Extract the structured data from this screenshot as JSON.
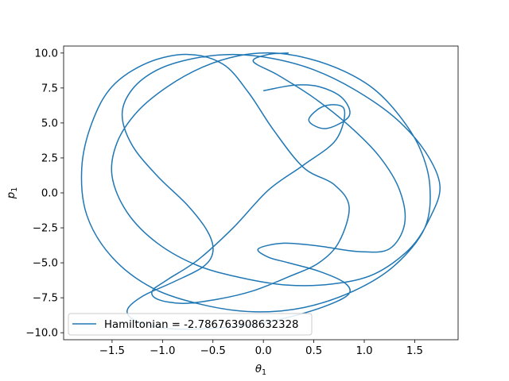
{
  "chart_data": {
    "type": "line",
    "xlabel_symbol": "θ",
    "xlabel_subscript": "1",
    "ylabel_symbol": "p",
    "ylabel_subscript": "1",
    "xlim": [
      -1.98,
      1.93
    ],
    "ylim": [
      -10.5,
      10.5
    ],
    "x_ticks": [
      -1.5,
      -1.0,
      -0.5,
      0.0,
      0.5,
      1.0,
      1.5
    ],
    "x_tick_labels": [
      "−1.5",
      "−1.0",
      "−0.5",
      "0.0",
      "0.5",
      "1.0",
      "1.5"
    ],
    "y_ticks": [
      -10.0,
      -7.5,
      -5.0,
      -2.5,
      0.0,
      2.5,
      5.0,
      7.5,
      10.0
    ],
    "y_tick_labels": [
      "−10.0",
      "−7.5",
      "−5.0",
      "−2.5",
      "0.0",
      "2.5",
      "5.0",
      "7.5",
      "10.0"
    ],
    "grid": false,
    "legend_position": "lower-left",
    "series": [
      {
        "name": "Hamiltonian = -2.786763908632328",
        "color": "#1f77b4",
        "x": [
          0.0,
          0.3,
          0.55,
          0.78,
          0.85,
          0.62,
          0.45,
          0.6,
          0.8,
          0.72,
          0.4,
          0.05,
          -0.3,
          -0.65,
          -0.95,
          -1.1,
          -1.05,
          -0.8,
          -0.45,
          -0.1,
          0.25,
          0.55,
          0.75,
          0.85,
          0.7,
          0.4,
          0.1,
          -0.15,
          -0.4,
          -0.75,
          -1.15,
          -1.5,
          -1.7,
          -1.8,
          -1.75,
          -1.5,
          -1.1,
          -0.6,
          -0.1,
          0.4,
          0.9,
          1.3,
          1.6,
          1.65,
          1.55,
          1.35,
          1.1,
          0.8,
          0.45,
          0.1,
          -0.25,
          -0.6,
          -0.95,
          -1.25,
          -1.45,
          -1.5,
          -1.35,
          -1.05,
          -0.65,
          -0.2,
          0.25,
          0.7,
          1.1,
          1.45,
          1.65,
          1.75,
          1.6,
          1.3,
          0.9,
          0.5,
          0.1,
          -0.3,
          -0.7,
          -1.05,
          -1.3,
          -1.4,
          -1.3,
          -1.05,
          -0.75,
          -0.55,
          -0.5,
          -0.6,
          -0.9,
          -1.2,
          -1.35,
          -1.25,
          -0.95,
          -0.55,
          -0.1,
          0.3,
          0.65,
          0.85,
          0.8,
          0.55,
          0.25,
          0.05,
          -0.05,
          0.2,
          0.55,
          0.95,
          1.25,
          1.4,
          1.35,
          1.15,
          0.85,
          0.5,
          0.15,
          -0.1,
          0.05,
          0.25
        ],
        "y": [
          7.3,
          7.7,
          7.6,
          6.8,
          5.5,
          4.6,
          5.2,
          6.2,
          6.0,
          3.8,
          2.0,
          0.2,
          -2.5,
          -4.8,
          -6.2,
          -7.0,
          -7.6,
          -7.9,
          -7.6,
          -7.0,
          -6.0,
          -5.0,
          -3.5,
          -1.0,
          0.6,
          1.8,
          4.5,
          7.2,
          9.2,
          9.9,
          9.3,
          7.6,
          5.0,
          1.8,
          -1.6,
          -4.6,
          -6.8,
          -8.0,
          -8.5,
          -8.2,
          -7.0,
          -5.2,
          -2.5,
          0.5,
          3.2,
          5.5,
          7.4,
          8.7,
          9.6,
          10.0,
          9.8,
          9.0,
          7.6,
          5.8,
          3.6,
          1.2,
          -1.4,
          -3.6,
          -5.2,
          -6.1,
          -6.6,
          -6.5,
          -5.8,
          -4.0,
          -1.8,
          0.5,
          3.0,
          5.4,
          7.4,
          8.8,
          9.6,
          9.9,
          9.6,
          8.8,
          7.4,
          5.6,
          3.4,
          1.2,
          -0.9,
          -2.8,
          -4.2,
          -5.3,
          -6.4,
          -7.4,
          -8.4,
          -9.2,
          -9.7,
          -9.7,
          -9.4,
          -8.8,
          -8.0,
          -7.2,
          -6.4,
          -5.6,
          -5.0,
          -4.6,
          -4.0,
          -3.6,
          -3.8,
          -4.2,
          -4.0,
          -2.2,
          0.2,
          2.6,
          4.8,
          6.8,
          8.4,
          9.4,
          9.9,
          10.0
        ]
      }
    ]
  }
}
